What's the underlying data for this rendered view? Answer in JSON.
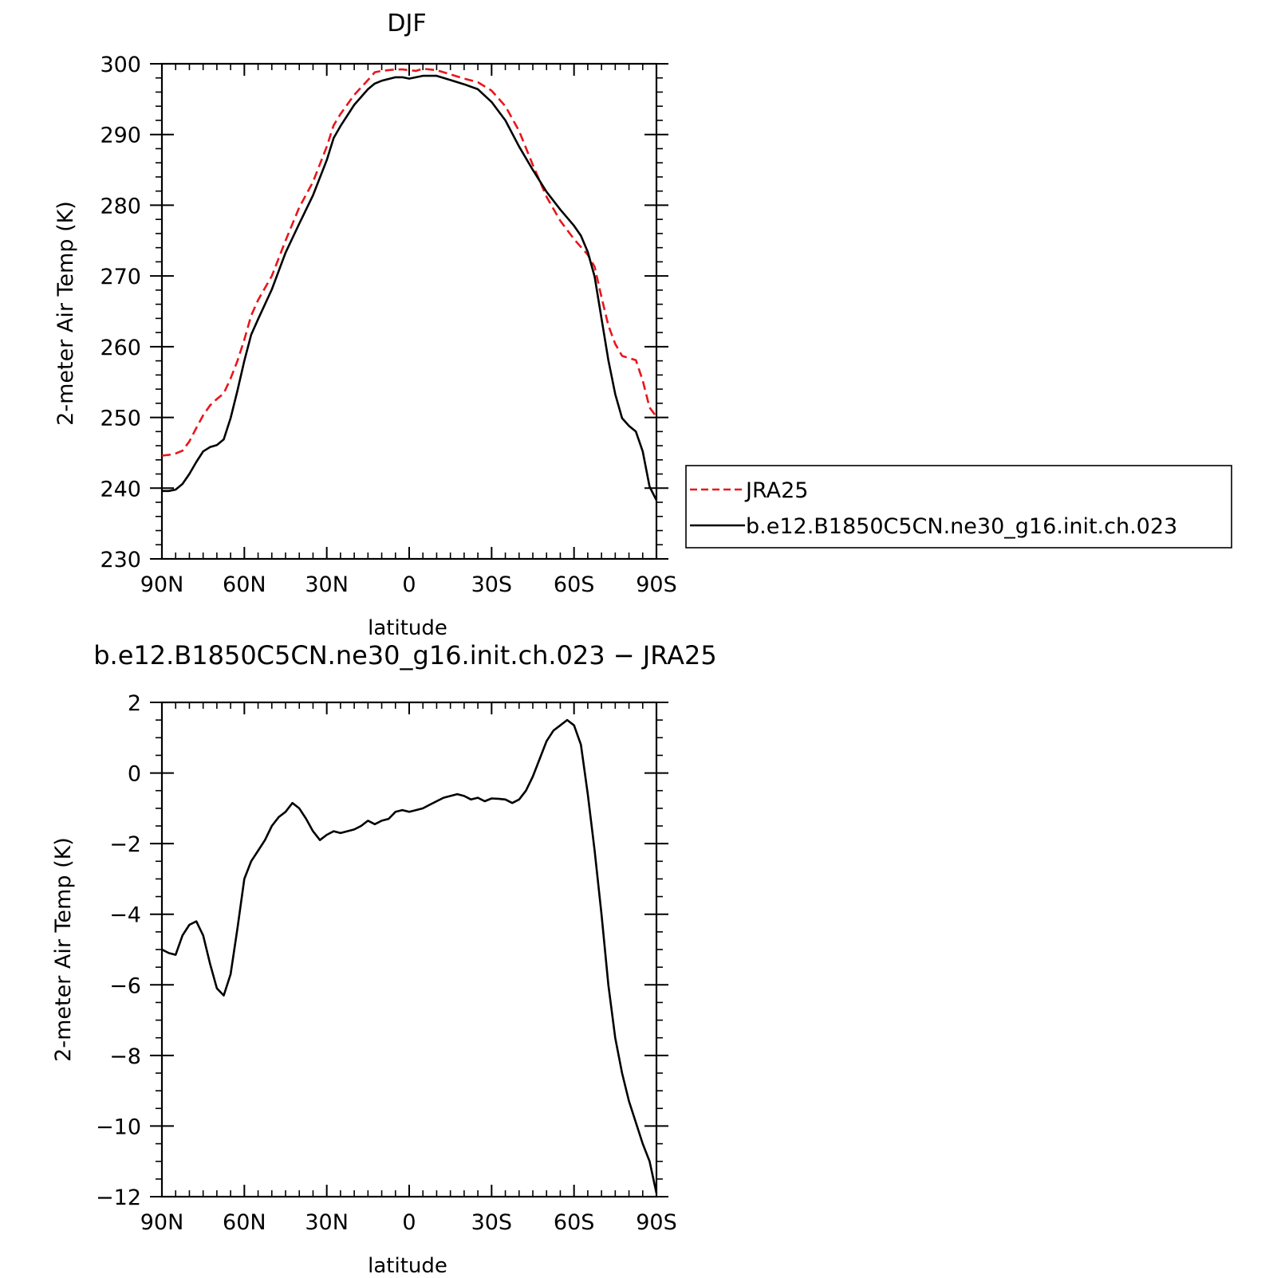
{
  "chart_data": [
    {
      "type": "line",
      "title": "DJF",
      "xlabel": "latitude",
      "ylabel": "2-meter Air Temp (K)",
      "xlim": [
        90,
        -90
      ],
      "ylim": [
        230,
        300
      ],
      "grid": false,
      "legend_position": "right-middle",
      "x_ticks": [
        90,
        60,
        30,
        0,
        -30,
        -60,
        -90
      ],
      "x_tick_labels": [
        "90N",
        "60N",
        "30N",
        "0",
        "30S",
        "60S",
        "90S"
      ],
      "y_ticks": [
        230,
        240,
        250,
        260,
        270,
        280,
        290,
        300
      ],
      "y_tick_labels": [
        "230",
        "240",
        "250",
        "260",
        "270",
        "280",
        "290",
        "300"
      ],
      "series": [
        {
          "name": "JRA25",
          "color": "#e8161b",
          "dash": "dashed",
          "x": [
            90,
            87.5,
            85,
            82.5,
            80,
            77.5,
            75,
            72.5,
            70,
            67.5,
            65,
            62.5,
            60,
            57.5,
            55,
            50,
            45,
            40,
            35,
            30,
            27.5,
            25,
            20,
            15,
            12.5,
            10,
            5,
            2.5,
            0,
            -2.5,
            -5,
            -10,
            -15,
            -20,
            -25,
            -30,
            -35,
            -40,
            -45,
            -50,
            -55,
            -60,
            -62.5,
            -65,
            -67.5,
            -70,
            -72.5,
            -75,
            -77.5,
            -80,
            -82.5,
            -85,
            -87.5,
            -90
          ],
          "y": [
            244.6,
            244.7,
            244.9,
            245.3,
            246.6,
            248.5,
            250.3,
            251.7,
            252.6,
            253.4,
            255.5,
            258.0,
            261.0,
            264.4,
            266.6,
            270.0,
            275.0,
            279.7,
            283.3,
            288.3,
            291.3,
            292.9,
            295.6,
            297.7,
            298.8,
            299.0,
            299.2,
            299.2,
            299.1,
            299.0,
            299.3,
            299.1,
            298.5,
            297.9,
            297.4,
            296.2,
            294.0,
            290.5,
            285.7,
            281.2,
            277.8,
            275.2,
            274.1,
            273.0,
            271.3,
            267.0,
            263.0,
            260.4,
            258.7,
            258.4,
            258.1,
            255.2,
            251.4,
            250.1
          ]
        },
        {
          "name": "b.e12.B1850C5CN.ne30_g16.init.ch.023",
          "color": "#000000",
          "dash": "solid",
          "x": [
            90,
            87.5,
            85,
            82.5,
            80,
            77.5,
            75,
            72.5,
            70,
            67.5,
            65,
            62.5,
            60,
            57.5,
            55,
            50,
            45,
            40,
            35,
            30,
            27.5,
            25,
            20,
            15,
            12.5,
            10,
            5,
            2.5,
            0,
            -2.5,
            -5,
            -10,
            -15,
            -20,
            -25,
            -30,
            -35,
            -40,
            -45,
            -50,
            -55,
            -60,
            -62.5,
            -65,
            -67.5,
            -70,
            -72.5,
            -75,
            -77.5,
            -80,
            -82.5,
            -85,
            -87.5,
            -90
          ],
          "y": [
            239.6,
            239.6,
            239.8,
            240.6,
            242.0,
            243.7,
            245.2,
            245.8,
            246.1,
            246.9,
            249.9,
            253.8,
            258.0,
            261.7,
            263.9,
            268.1,
            273.3,
            277.4,
            281.4,
            286.4,
            289.5,
            291.2,
            294.2,
            296.4,
            297.2,
            297.6,
            298.1,
            298.1,
            297.9,
            298.1,
            298.3,
            298.3,
            297.7,
            297.1,
            296.4,
            294.6,
            292.0,
            288.3,
            285.0,
            281.9,
            279.4,
            277.1,
            275.7,
            273.4,
            269.9,
            264.0,
            258.1,
            253.3,
            249.9,
            248.8,
            248.0,
            245.2,
            240.2,
            238.3
          ]
        }
      ]
    },
    {
      "type": "line",
      "title": "b.e12.B1850C5CN.ne30_g16.init.ch.023 − JRA25",
      "xlabel": "latitude",
      "ylabel": "2-meter Air Temp (K)",
      "xlim": [
        90,
        -90
      ],
      "ylim": [
        -12,
        2
      ],
      "grid": false,
      "x_ticks": [
        90,
        60,
        30,
        0,
        -30,
        -60,
        -90
      ],
      "x_tick_labels": [
        "90N",
        "60N",
        "30N",
        "0",
        "30S",
        "60S",
        "90S"
      ],
      "y_ticks": [
        -12,
        -10,
        -8,
        -6,
        -4,
        -2,
        0,
        2
      ],
      "y_tick_labels": [
        "−12",
        "−10",
        "−8",
        "−6",
        "−4",
        "−2",
        "0",
        "2"
      ],
      "series": [
        {
          "color": "#000000",
          "dash": "solid",
          "x": [
            90,
            87.5,
            85,
            82.5,
            80,
            77.5,
            75,
            72.5,
            70,
            67.5,
            65,
            62.5,
            60,
            57.5,
            55,
            52.5,
            50,
            47.5,
            45,
            42.5,
            40,
            37.5,
            35,
            32.5,
            30,
            27.5,
            25,
            22.5,
            20,
            17.5,
            15,
            12.5,
            10,
            7.5,
            5,
            2.5,
            0,
            -2.5,
            -5,
            -7.5,
            -10,
            -12.5,
            -15,
            -17.5,
            -20,
            -22.5,
            -25,
            -27.5,
            -30,
            -32.5,
            -35,
            -37.5,
            -40,
            -42.5,
            -45,
            -47.5,
            -50,
            -52.5,
            -55,
            -57.5,
            -60,
            -62.5,
            -65,
            -67.5,
            -70,
            -72.5,
            -75,
            -77.5,
            -80,
            -82.5,
            -85,
            -87.5,
            -90
          ],
          "y": [
            -5.0,
            -5.1,
            -5.15,
            -4.6,
            -4.3,
            -4.2,
            -4.6,
            -5.4,
            -6.1,
            -6.3,
            -5.7,
            -4.4,
            -3.0,
            -2.5,
            -2.2,
            -1.9,
            -1.5,
            -1.25,
            -1.1,
            -0.85,
            -1.0,
            -1.3,
            -1.65,
            -1.9,
            -1.75,
            -1.65,
            -1.7,
            -1.65,
            -1.6,
            -1.5,
            -1.35,
            -1.45,
            -1.35,
            -1.3,
            -1.1,
            -1.05,
            -1.1,
            -1.05,
            -1.0,
            -0.9,
            -0.8,
            -0.7,
            -0.65,
            -0.6,
            -0.65,
            -0.75,
            -0.7,
            -0.8,
            -0.72,
            -0.73,
            -0.75,
            -0.85,
            -0.75,
            -0.5,
            -0.1,
            0.4,
            0.9,
            1.2,
            1.35,
            1.5,
            1.35,
            0.8,
            -0.6,
            -2.2,
            -4.0,
            -6.0,
            -7.5,
            -8.5,
            -9.3,
            -9.9,
            -10.5,
            -11.0,
            -11.9
          ]
        }
      ]
    }
  ]
}
